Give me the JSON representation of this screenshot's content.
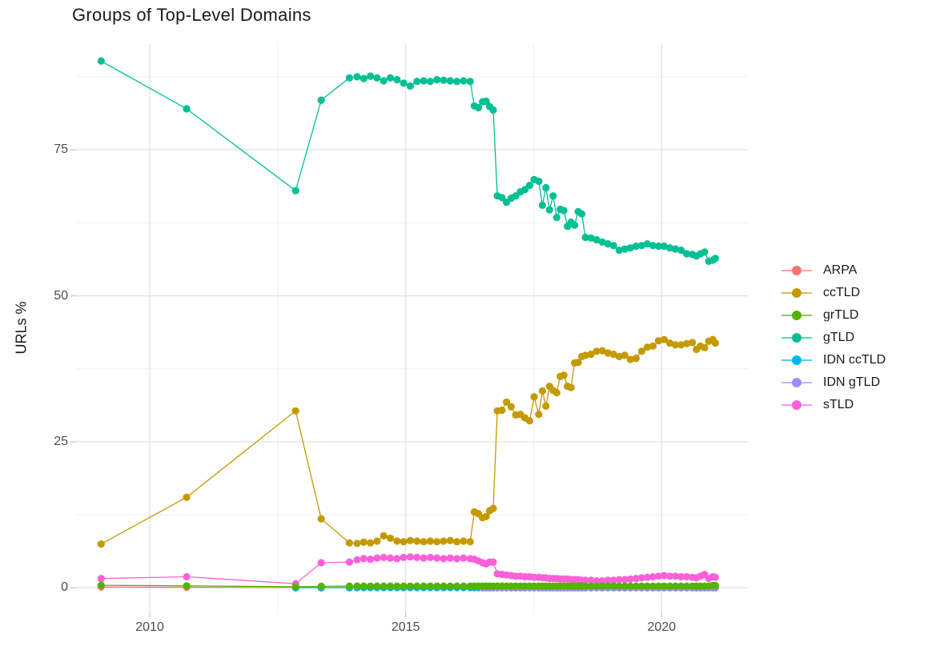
{
  "chart_data": {
    "type": "line",
    "title": "Groups of Top-Level Domains",
    "xlabel": "",
    "ylabel": "URLs %",
    "xlim": [
      2008.56,
      2021.7
    ],
    "ylim": [
      -4.2,
      93.1
    ],
    "x_ticks": [
      2010,
      2015,
      2020
    ],
    "y_ticks": [
      0,
      25,
      50,
      75
    ],
    "x_minor": [
      2012.5,
      2017.5
    ],
    "y_minor": [
      12.5,
      37.5,
      62.5,
      87.5
    ],
    "grid": "on",
    "legend_position": "right",
    "draw_order": [
      "ARPA",
      "IDN ccTLD",
      "IDN gTLD",
      "ccTLD",
      "gTLD",
      "sTLD",
      "grTLD"
    ],
    "x": [
      2009.05,
      2010.72,
      2012.85,
      2013.35,
      2013.9,
      2014.05,
      2014.18,
      2014.31,
      2014.44,
      2014.57,
      2014.7,
      2014.83,
      2014.96,
      2015.09,
      2015.22,
      2015.35,
      2015.48,
      2015.61,
      2015.74,
      2015.87,
      2016.0,
      2016.13,
      2016.26,
      2016.34,
      2016.42,
      2016.5,
      2016.57,
      2016.64,
      2016.71,
      2016.79,
      2016.88,
      2016.97,
      2017.06,
      2017.15,
      2017.24,
      2017.33,
      2017.42,
      2017.51,
      2017.6,
      2017.67,
      2017.74,
      2017.81,
      2017.88,
      2017.95,
      2018.02,
      2018.09,
      2018.16,
      2018.23,
      2018.3,
      2018.37,
      2018.44,
      2018.51,
      2018.62,
      2018.73,
      2018.84,
      2018.95,
      2019.06,
      2019.17,
      2019.28,
      2019.39,
      2019.5,
      2019.61,
      2019.72,
      2019.83,
      2019.94,
      2020.05,
      2020.16,
      2020.27,
      2020.38,
      2020.49,
      2020.6,
      2020.68,
      2020.76,
      2020.84,
      2020.92,
      2021.0,
      2021.05
    ],
    "series": [
      {
        "name": "ARPA",
        "color": "#F8766D",
        "values": [
          0.15,
          0.1,
          0.05,
          0.05,
          0.05,
          0.05,
          0.05,
          0.05,
          0.05,
          0.05,
          0.05,
          0.05,
          0.05,
          0.05,
          0.05,
          0.05,
          0.05,
          0.05,
          0.05,
          0.05,
          0.05,
          0.05,
          0.05,
          0.03,
          0.03,
          0.03,
          0.03,
          0.03,
          0.03,
          0.02,
          0.02,
          0.02,
          0.02,
          0.02,
          0.02,
          0.02,
          0.02,
          0.02,
          0.02,
          0.02,
          0.02,
          0.02,
          0.02,
          0.02,
          0.02,
          0.02,
          0.02,
          0.02,
          0.02,
          0.02,
          0.02,
          0.02,
          0.02,
          0.02,
          0.02,
          0.02,
          0.02,
          0.02,
          0.02,
          0.02,
          0.02,
          0.02,
          0.02,
          0.02,
          0.02,
          0.02,
          0.02,
          0.02,
          0.02,
          0.02,
          0.02,
          0.02,
          0.02,
          0.02,
          0.02,
          0.02,
          0.02
        ]
      },
      {
        "name": "ccTLD",
        "color": "#C49A00",
        "values": [
          7.5,
          15.5,
          30.3,
          11.8,
          7.7,
          7.6,
          7.8,
          7.7,
          8.0,
          8.9,
          8.5,
          8.0,
          7.9,
          8.1,
          8.0,
          7.9,
          8.0,
          7.9,
          8.0,
          8.1,
          7.9,
          8.0,
          7.9,
          13.0,
          12.7,
          12.0,
          12.2,
          13.2,
          13.6,
          30.3,
          30.4,
          31.8,
          31.0,
          29.6,
          29.7,
          29.1,
          28.6,
          32.7,
          29.7,
          33.7,
          31.1,
          34.5,
          33.8,
          33.4,
          36.2,
          36.4,
          34.5,
          34.3,
          38.5,
          38.6,
          39.6,
          39.8,
          40.0,
          40.5,
          40.6,
          40.2,
          40.0,
          39.6,
          39.8,
          39.1,
          39.3,
          40.5,
          41.2,
          41.4,
          42.3,
          42.5,
          41.9,
          41.6,
          41.6,
          41.8,
          42.0,
          40.8,
          41.4,
          41.1,
          42.2,
          42.5,
          41.9
        ]
      },
      {
        "name": "grTLD",
        "color": "#53B400",
        "values": [
          0.45,
          0.35,
          0.2,
          0.25,
          0.3,
          0.3,
          0.3,
          0.3,
          0.3,
          0.3,
          0.3,
          0.3,
          0.3,
          0.3,
          0.3,
          0.3,
          0.3,
          0.3,
          0.3,
          0.3,
          0.3,
          0.3,
          0.3,
          0.3,
          0.3,
          0.3,
          0.3,
          0.3,
          0.3,
          0.3,
          0.3,
          0.3,
          0.3,
          0.3,
          0.3,
          0.3,
          0.3,
          0.3,
          0.3,
          0.3,
          0.3,
          0.3,
          0.3,
          0.3,
          0.3,
          0.3,
          0.3,
          0.3,
          0.3,
          0.3,
          0.3,
          0.3,
          0.3,
          0.3,
          0.3,
          0.3,
          0.3,
          0.3,
          0.3,
          0.3,
          0.3,
          0.3,
          0.3,
          0.3,
          0.3,
          0.3,
          0.3,
          0.3,
          0.3,
          0.3,
          0.3,
          0.3,
          0.3,
          0.3,
          0.3,
          0.4,
          0.4
        ]
      },
      {
        "name": "gTLD",
        "color": "#00C094",
        "values": [
          90.2,
          82.0,
          68.0,
          83.5,
          87.3,
          87.5,
          87.2,
          87.6,
          87.3,
          86.8,
          87.3,
          87.0,
          86.4,
          85.9,
          86.7,
          86.8,
          86.7,
          87.0,
          86.9,
          86.8,
          86.7,
          86.8,
          86.7,
          82.5,
          82.2,
          83.2,
          83.3,
          82.4,
          81.8,
          67.1,
          66.8,
          66.0,
          66.7,
          67.1,
          67.8,
          68.2,
          68.9,
          69.9,
          69.6,
          65.5,
          68.5,
          64.7,
          67.1,
          63.4,
          64.8,
          64.6,
          61.9,
          62.6,
          62.1,
          64.4,
          64.0,
          60.0,
          59.9,
          59.6,
          59.2,
          58.9,
          58.6,
          57.8,
          58.0,
          58.2,
          58.5,
          58.6,
          58.9,
          58.6,
          58.5,
          58.5,
          58.2,
          58.0,
          57.8,
          57.2,
          57.1,
          56.8,
          57.2,
          57.5,
          55.9,
          56.1,
          56.4
        ]
      },
      {
        "name": "IDN ccTLD",
        "color": "#00B6EB",
        "values": [
          null,
          null,
          0.0,
          0.0,
          0.0,
          0.05,
          0.05,
          0.05,
          0.05,
          0.05,
          0.05,
          0.05,
          0.05,
          0.05,
          0.05,
          0.05,
          0.05,
          0.05,
          0.05,
          0.05,
          0.05,
          0.05,
          0.05,
          0.05,
          0.05,
          0.05,
          0.05,
          0.05,
          0.05,
          0.05,
          0.05,
          0.05,
          0.05,
          0.05,
          0.05,
          0.05,
          0.05,
          0.05,
          0.05,
          0.05,
          0.05,
          0.05,
          0.05,
          0.05,
          0.05,
          0.05,
          0.05,
          0.05,
          0.05,
          0.05,
          0.05,
          0.05,
          0.05,
          0.05,
          0.05,
          0.05,
          0.05,
          0.05,
          0.05,
          0.05,
          0.05,
          0.05,
          0.05,
          0.05,
          0.05,
          0.05,
          0.05,
          0.05,
          0.05,
          0.05,
          0.05,
          0.05,
          0.05,
          0.05,
          0.05,
          0.05,
          0.05
        ]
      },
      {
        "name": "IDN gTLD",
        "color": "#A58AFF",
        "values": [
          null,
          null,
          null,
          null,
          null,
          null,
          null,
          null,
          null,
          null,
          null,
          null,
          null,
          null,
          null,
          null,
          null,
          null,
          null,
          null,
          null,
          null,
          null,
          null,
          null,
          0.0,
          0.0,
          0.0,
          0.0,
          0.0,
          0.0,
          0.0,
          0.0,
          0.0,
          0.0,
          0.0,
          0.0,
          0.0,
          0.0,
          0.0,
          0.0,
          0.0,
          0.0,
          0.0,
          0.0,
          0.0,
          0.0,
          0.0,
          0.0,
          0.0,
          0.0,
          0.0,
          0.0,
          0.0,
          0.0,
          0.0,
          0.0,
          0.0,
          0.0,
          0.0,
          0.0,
          0.0,
          0.0,
          0.0,
          0.0,
          0.0,
          0.0,
          0.0,
          0.0,
          0.0,
          0.0,
          0.0,
          0.0,
          0.0,
          0.0,
          0.0,
          0.0
        ]
      },
      {
        "name": "sTLD",
        "color": "#FB61D7",
        "values": [
          1.6,
          1.9,
          0.7,
          4.3,
          4.4,
          4.8,
          5.0,
          4.9,
          5.1,
          5.2,
          5.1,
          5.0,
          5.2,
          5.3,
          5.2,
          5.1,
          5.2,
          5.1,
          5.0,
          5.1,
          5.0,
          5.1,
          5.0,
          4.9,
          4.6,
          4.3,
          4.1,
          4.4,
          4.4,
          2.4,
          2.3,
          2.2,
          2.1,
          2.0,
          2.0,
          1.9,
          1.9,
          1.8,
          1.8,
          1.7,
          1.7,
          1.6,
          1.6,
          1.6,
          1.5,
          1.5,
          1.5,
          1.4,
          1.4,
          1.4,
          1.3,
          1.3,
          1.3,
          1.2,
          1.2,
          1.3,
          1.3,
          1.4,
          1.4,
          1.5,
          1.6,
          1.7,
          1.8,
          1.9,
          2.0,
          2.1,
          2.0,
          2.0,
          1.9,
          1.9,
          1.8,
          1.7,
          2.0,
          2.3,
          1.6,
          1.9,
          1.8
        ]
      }
    ]
  },
  "style": {
    "background": "#ffffff",
    "grid_major_color": "#e3e3e3",
    "grid_minor_color": "#f0f0f0",
    "tick_color": "#d0d0d0",
    "tick_text_color": "#4d4d4d",
    "title_color": "#1a1a1a"
  }
}
